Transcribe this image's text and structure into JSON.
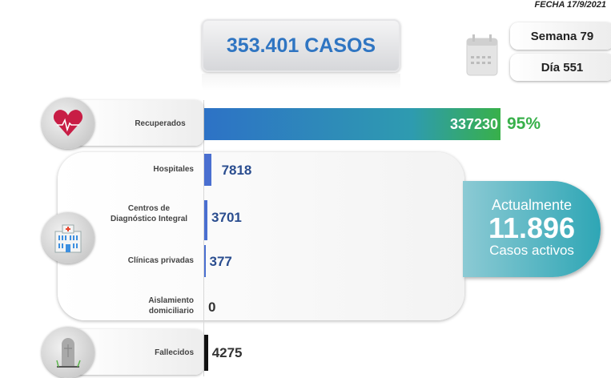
{
  "header": {
    "date": "FECHA 17/9/2021",
    "total_cases": "353.401 CASOS",
    "week": "Semana 79",
    "day": "Día 551"
  },
  "active": {
    "title": "Actualmente",
    "value": "11.896",
    "subtitle": "Casos activos"
  },
  "colors": {
    "cases_text": "#2f75c2",
    "recovered_start": "#2d72c6",
    "recovered_end": "#38b04a",
    "percent": "#38b04a",
    "bars_blue": "#4a6fd0",
    "deaths": "#111111",
    "badge": "#2ea6b5"
  },
  "chart_data": {
    "type": "bar",
    "categories": [
      "Recuperados",
      "Hospitales",
      "Centros de Diagnóstico Integral",
      "Clínicas privadas",
      "Aislamiento domiciliario",
      "Fallecidos"
    ],
    "values": [
      337230,
      7818,
      3701,
      377,
      0,
      4275
    ],
    "labels": {
      "recovered": "Recuperados",
      "hospitals": "Hospitales",
      "cdi_1": "Centros de",
      "cdi_2": "Diagnóstico Integral",
      "clinics": "Clínicas privadas",
      "home_1": "Aislamiento",
      "home_2": "domiciliario",
      "deaths": "Fallecidos"
    },
    "value_labels": [
      "337230",
      "7818",
      "3701",
      "377",
      "0",
      "4275"
    ],
    "recovered_percent": "95%"
  }
}
